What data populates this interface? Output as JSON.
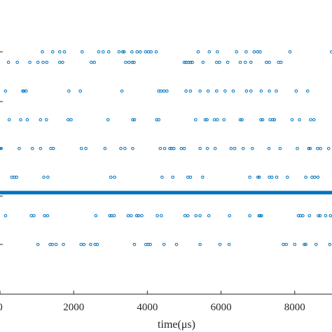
{
  "chart_data": {
    "type": "scatter",
    "title": "",
    "xlabel": "time(μs)",
    "ylabel": "",
    "xlim": [
      0,
      9200
    ],
    "x_ticks": [
      0,
      2000,
      4000,
      6000,
      8000
    ],
    "x_tick_labels": [
      "0",
      "2000",
      "4000",
      "6000",
      "8000"
    ],
    "grid": false,
    "legend": "none",
    "marker": "open-circle",
    "color": "#0072BD",
    "highlight_line": {
      "color": "#0072BD"
    },
    "series": [
      {
        "values": [
          1150,
          1430,
          1620,
          1750,
          2230,
          2680,
          2800,
          2950,
          3230,
          3330,
          3370,
          3580,
          3720,
          3810,
          3950,
          4030,
          4100,
          4240,
          5380,
          5680,
          5900,
          6420,
          6680,
          6900,
          6990,
          7060,
          7870,
          9000,
          9090
        ]
      },
      {
        "values": [
          230,
          470,
          810,
          1030,
          1170,
          1270,
          1620,
          1700,
          2480,
          2560,
          3410,
          3500,
          3590,
          3640,
          5000,
          5050,
          5110,
          5170,
          5220,
          5510,
          5880,
          5960,
          6180,
          6520,
          6660,
          6810,
          7230,
          7310,
          7560,
          7630
        ]
      },
      {
        "values": [
          150,
          620,
          650,
          710,
          1870,
          2180,
          3310,
          4310,
          4370,
          4450,
          4530,
          5050,
          5170,
          5430,
          5650,
          5880,
          6110,
          6330,
          6690,
          6810,
          7090,
          7310,
          7500,
          8040,
          8350
        ]
      },
      {
        "values": [
          250,
          560,
          740,
          1100,
          1260,
          1850,
          1930,
          2930,
          3600,
          3650,
          4250,
          4310,
          5310,
          5570,
          5620,
          5820,
          5900,
          6080,
          6520,
          6570,
          7080,
          7130,
          7330,
          7400,
          7450,
          7930,
          8130,
          8430,
          8520
        ]
      },
      {
        "values": [
          -20,
          30,
          520,
          880,
          1100,
          1380,
          1450,
          2210,
          2330,
          2850,
          3280,
          3390,
          3600,
          4350,
          4470,
          4610,
          4660,
          4720,
          4920,
          5000,
          5430,
          5630,
          5840,
          6270,
          6370,
          6600,
          6850,
          7300,
          7600,
          8070,
          8380,
          8420,
          8620,
          8700,
          8920
        ]
      },
      {
        "values": [
          320,
          390,
          450,
          1190,
          1300,
          3010,
          3110,
          4400,
          4690,
          5100,
          5170,
          5500,
          6780,
          7000,
          7040,
          7310,
          7380,
          7510,
          7800,
          8300,
          8470,
          8540,
          8630
        ]
      },
      {
        "values": [
          -50,
          150,
          850,
          920,
          1210,
          1290,
          2600,
          2980,
          3030,
          3100,
          3480,
          3560,
          3710,
          3760,
          3850,
          4270,
          4380,
          5020,
          5100,
          5320,
          5430,
          5670,
          6230,
          6780,
          7030,
          7060,
          7100,
          8100,
          8160,
          8220,
          8400,
          8640,
          8690,
          8840,
          8970
        ]
      },
      {
        "values": [
          1030,
          1360,
          1420,
          1520,
          1720,
          2200,
          2280,
          2460,
          2580,
          2640,
          3650,
          3960,
          4020,
          4080,
          4450,
          4790,
          5430,
          5970,
          6220,
          7690,
          7770,
          8000,
          8260,
          8300,
          8580,
          8950
        ]
      }
    ],
    "series_y": [
      74,
      89,
      130,
      171,
      212,
      253,
      308,
      349
    ],
    "tick_rows_y": [
      74,
      145,
      212,
      280,
      349
    ]
  }
}
